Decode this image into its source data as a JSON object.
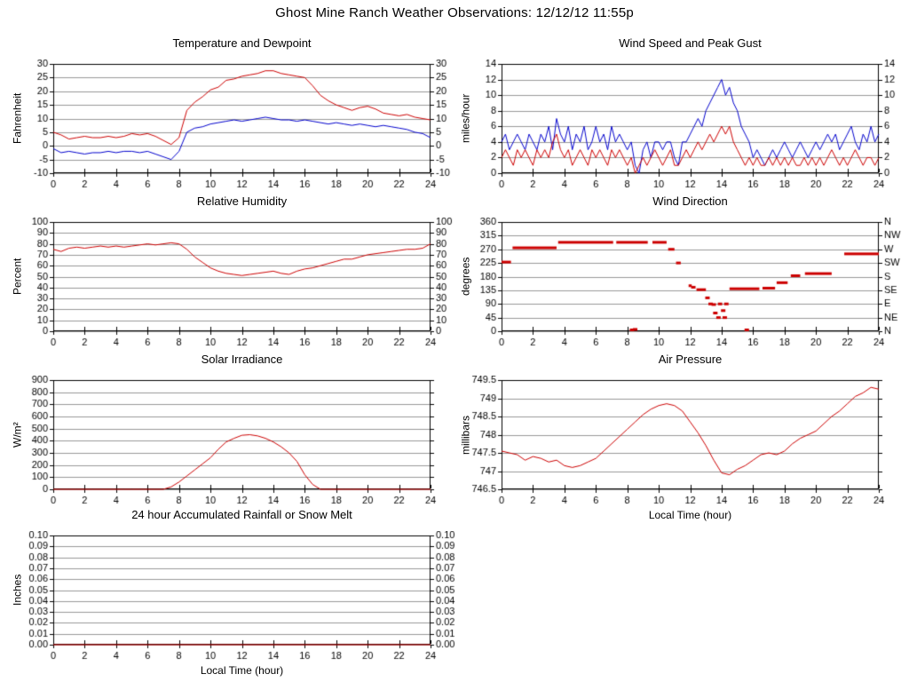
{
  "page_title": "Ghost Mine Ranch Weather Observations: 12/12/12 11:55p",
  "colors": {
    "red": "#cc0000",
    "blue": "#0000cc",
    "grid": "#999999",
    "axis": "#000000"
  },
  "x_axis": {
    "label": "Local Time (hour)",
    "xlim": [
      0,
      24
    ],
    "tick_vals": [
      0,
      2,
      4,
      6,
      8,
      10,
      12,
      14,
      16,
      18,
      20,
      22,
      24
    ],
    "tick_labels": [
      "0",
      "2",
      "4",
      "6",
      "8",
      "10",
      "12",
      "14",
      "16",
      "18",
      "20",
      "22",
      "24"
    ]
  },
  "chart_data": [
    {
      "id": "temperature_dewpoint",
      "type": "line",
      "title": "Temperature and Dewpoint",
      "ylabel": "Fahrenheit",
      "xlabel": "",
      "ylim": [
        -10,
        30
      ],
      "ytick_vals": [
        -10,
        -5,
        0,
        5,
        10,
        15,
        20,
        25,
        30
      ],
      "ytick_labels": [
        "-10",
        "-5",
        "0",
        "5",
        "10",
        "15",
        "20",
        "25",
        "30"
      ],
      "right_tick_labels": [
        "-10",
        "-5",
        "0",
        "5",
        "10",
        "15",
        "20",
        "25",
        "30"
      ],
      "series": [
        {
          "name": "temperature",
          "color": "#cc0000",
          "x0": 0,
          "dx": 0.5,
          "values": [
            5,
            4,
            2.5,
            3,
            3.5,
            3,
            3,
            3.5,
            3,
            3.5,
            4.5,
            4,
            4.5,
            3.5,
            2,
            0.5,
            3,
            13,
            16,
            18,
            20.5,
            21.5,
            24,
            24.5,
            25.5,
            26,
            26.5,
            27.5,
            27.5,
            26.5,
            26,
            25.5,
            25,
            22,
            18.5,
            16.5,
            15,
            14,
            13,
            14,
            14.5,
            13.5,
            12,
            11.5,
            11,
            11.5,
            10.5,
            10,
            9.5
          ]
        },
        {
          "name": "dewpoint",
          "color": "#0000cc",
          "x0": 0,
          "dx": 0.5,
          "values": [
            -1,
            -2.5,
            -2,
            -2.5,
            -3,
            -2.5,
            -2.5,
            -2,
            -2.5,
            -2,
            -2,
            -2.5,
            -2,
            -3,
            -4,
            -5,
            -2,
            5,
            6.5,
            7,
            8,
            8.5,
            9,
            9.5,
            9,
            9.5,
            10,
            10.5,
            10,
            9.5,
            9.5,
            9,
            9.5,
            9,
            8.5,
            8,
            8.5,
            8,
            7.5,
            8,
            7.5,
            7,
            7.5,
            7,
            6.5,
            6,
            5,
            4.5,
            3
          ]
        }
      ]
    },
    {
      "id": "wind_speed_gust",
      "type": "line",
      "title": "Wind Speed and Peak Gust",
      "ylabel": "miles/hour",
      "xlabel": "",
      "ylim": [
        0,
        14
      ],
      "ytick_vals": [
        0,
        2,
        4,
        6,
        8,
        10,
        12,
        14
      ],
      "ytick_labels": [
        "0",
        "2",
        "4",
        "6",
        "8",
        "10",
        "12",
        "14"
      ],
      "right_tick_labels": [
        "0",
        "2",
        "4",
        "6",
        "8",
        "10",
        "12",
        "14"
      ],
      "series": [
        {
          "name": "peak_gust",
          "color": "#0000cc",
          "x0": 0,
          "dx": 0.25,
          "values": [
            4,
            5,
            3,
            4,
            5,
            4,
            3,
            5,
            4,
            3,
            5,
            4,
            6,
            3,
            7,
            5,
            4,
            6,
            3,
            5,
            4,
            6,
            3,
            4,
            6,
            4,
            5,
            3,
            6,
            4,
            5,
            4,
            3,
            4,
            1,
            0,
            3,
            4,
            2,
            4,
            4,
            3,
            4,
            4,
            2,
            1,
            4,
            4,
            5,
            6,
            7,
            6,
            8,
            9,
            10,
            11,
            12,
            10,
            11,
            9,
            8,
            6,
            5,
            4,
            2,
            3,
            2,
            1,
            2,
            3,
            2,
            3,
            4,
            3,
            2,
            3,
            4,
            3,
            2,
            3,
            4,
            3,
            4,
            5,
            4,
            5,
            3,
            4,
            5,
            6,
            4,
            3,
            5,
            4,
            6,
            4,
            5
          ]
        },
        {
          "name": "wind_speed",
          "color": "#cc0000",
          "x0": 0,
          "dx": 0.25,
          "values": [
            2,
            3,
            2,
            1,
            3,
            2,
            3,
            2,
            1,
            3,
            2,
            3,
            2,
            4,
            5,
            3,
            2,
            3,
            1,
            2,
            3,
            2,
            1,
            3,
            2,
            3,
            2,
            1,
            3,
            2,
            3,
            2,
            1,
            2,
            0,
            1,
            2,
            1,
            2,
            3,
            2,
            1,
            2,
            3,
            1,
            1,
            2,
            3,
            2,
            3,
            4,
            3,
            4,
            5,
            4,
            5,
            6,
            5,
            6,
            4,
            3,
            2,
            1,
            2,
            1,
            2,
            1,
            1,
            2,
            1,
            2,
            1,
            2,
            1,
            2,
            1,
            1,
            2,
            1,
            2,
            1,
            2,
            1,
            2,
            3,
            2,
            1,
            2,
            1,
            2,
            3,
            2,
            1,
            2,
            2,
            1,
            2
          ]
        }
      ]
    },
    {
      "id": "relative_humidity",
      "type": "line",
      "title": "Relative Humidity",
      "ylabel": "Percent",
      "xlabel": "",
      "ylim": [
        0,
        100
      ],
      "ytick_vals": [
        0,
        10,
        20,
        30,
        40,
        50,
        60,
        70,
        80,
        90,
        100
      ],
      "ytick_labels": [
        "0",
        "10",
        "20",
        "30",
        "40",
        "50",
        "60",
        "70",
        "80",
        "90",
        "100"
      ],
      "right_tick_labels": [
        "0",
        "10",
        "20",
        "30",
        "40",
        "50",
        "60",
        "70",
        "80",
        "90",
        "100"
      ],
      "series": [
        {
          "name": "humidity",
          "color": "#cc0000",
          "x0": 0,
          "dx": 0.5,
          "values": [
            75,
            73,
            76,
            77,
            76,
            77,
            78,
            77,
            78,
            77,
            78,
            79,
            80,
            79,
            80,
            81,
            80,
            75,
            68,
            63,
            58,
            55,
            53,
            52,
            51,
            52,
            53,
            54,
            55,
            53,
            52,
            55,
            57,
            58,
            60,
            62,
            64,
            66,
            66,
            68,
            70,
            71,
            72,
            73,
            74,
            75,
            75,
            76,
            80
          ]
        }
      ]
    },
    {
      "id": "wind_direction",
      "type": "dash",
      "title": "Wind Direction",
      "ylabel": "degrees",
      "xlabel": "",
      "ylim": [
        0,
        360
      ],
      "ytick_vals": [
        0,
        45,
        90,
        135,
        180,
        225,
        270,
        315,
        360
      ],
      "ytick_labels": [
        "0",
        "45",
        "90",
        "135",
        "180",
        "225",
        "270",
        "315",
        "360"
      ],
      "right_tick_labels": [
        "N",
        "NE",
        "E",
        "SE",
        "S",
        "SW",
        "W",
        "NW",
        "N"
      ],
      "color": "#cc0000",
      "segments": [
        [
          0.0,
          0.6,
          228
        ],
        [
          0.7,
          3.5,
          275
        ],
        [
          3.6,
          7.1,
          293
        ],
        [
          7.3,
          9.3,
          293
        ],
        [
          9.6,
          10.5,
          293
        ],
        [
          10.6,
          11.0,
          270
        ],
        [
          11.1,
          11.4,
          225
        ],
        [
          11.9,
          12.1,
          150
        ],
        [
          12.4,
          13.0,
          137
        ],
        [
          14.5,
          16.4,
          140
        ],
        [
          16.6,
          17.4,
          142
        ],
        [
          17.5,
          18.2,
          160
        ],
        [
          18.4,
          19.0,
          183
        ],
        [
          19.3,
          21.0,
          190
        ],
        [
          21.8,
          24.0,
          255
        ]
      ],
      "dots": [
        [
          8.3,
          0
        ],
        [
          8.5,
          6
        ],
        [
          12.2,
          145
        ],
        [
          13.1,
          110
        ],
        [
          13.3,
          90
        ],
        [
          13.5,
          88
        ],
        [
          13.6,
          60
        ],
        [
          13.8,
          45
        ],
        [
          13.9,
          90
        ],
        [
          14.1,
          68
        ],
        [
          14.2,
          45
        ],
        [
          14.3,
          90
        ],
        [
          15.6,
          0
        ]
      ]
    },
    {
      "id": "solar_irradiance",
      "type": "line",
      "title": "Solar Irradiance",
      "ylabel": "W/m²",
      "xlabel": "",
      "ylim": [
        0,
        900
      ],
      "ytick_vals": [
        0,
        100,
        200,
        300,
        400,
        500,
        600,
        700,
        800,
        900
      ],
      "ytick_labels": [
        "0",
        "100",
        "200",
        "300",
        "400",
        "500",
        "600",
        "700",
        "800",
        "900"
      ],
      "right_tick_labels": null,
      "series": [
        {
          "name": "solar",
          "color": "#cc0000",
          "x0": 0,
          "dx": 0.5,
          "values": [
            0,
            0,
            0,
            0,
            0,
            0,
            0,
            0,
            0,
            0,
            0,
            0,
            0,
            0,
            0,
            20,
            60,
            110,
            160,
            210,
            260,
            330,
            390,
            420,
            445,
            450,
            440,
            420,
            390,
            350,
            300,
            230,
            120,
            40,
            0,
            0,
            0,
            0,
            0,
            0,
            0,
            0,
            0,
            0,
            0,
            0,
            0,
            0,
            0
          ]
        }
      ]
    },
    {
      "id": "air_pressure",
      "type": "line",
      "title": "Air Pressure",
      "ylabel": "millibars",
      "xlabel": "Local Time (hour)",
      "ylim": [
        746.5,
        749.5
      ],
      "ytick_vals": [
        746.5,
        747,
        747.5,
        748,
        748.5,
        749,
        749.5
      ],
      "ytick_labels": [
        "746.5",
        "747",
        "747.5",
        "748",
        "748.5",
        "749",
        "749.5"
      ],
      "right_tick_labels": null,
      "series": [
        {
          "name": "pressure",
          "color": "#cc0000",
          "x0": 0,
          "dx": 0.5,
          "values": [
            747.55,
            747.5,
            747.45,
            747.3,
            747.4,
            747.35,
            747.25,
            747.3,
            747.15,
            747.1,
            747.15,
            747.25,
            747.35,
            747.55,
            747.75,
            747.95,
            748.15,
            748.35,
            748.55,
            748.7,
            748.8,
            748.85,
            748.8,
            748.65,
            748.35,
            748.05,
            747.7,
            747.3,
            746.95,
            746.9,
            747.05,
            747.15,
            747.3,
            747.45,
            747.5,
            747.45,
            747.55,
            747.75,
            747.9,
            748.0,
            748.1,
            748.3,
            748.5,
            748.65,
            748.85,
            749.05,
            749.15,
            749.3,
            749.25
          ]
        }
      ]
    },
    {
      "id": "rainfall",
      "type": "line",
      "title": "24 hour Accumulated Rainfall or Snow Melt",
      "ylabel": "Inches",
      "xlabel": "Local Time (hour)",
      "ylim": [
        0,
        0.1
      ],
      "ytick_vals": [
        0,
        0.01,
        0.02,
        0.03,
        0.04,
        0.05,
        0.06,
        0.07,
        0.08,
        0.09,
        0.1
      ],
      "ytick_labels": [
        "0.00",
        "0.01",
        "0.02",
        "0.03",
        "0.04",
        "0.05",
        "0.06",
        "0.07",
        "0.08",
        "0.09",
        "0.10"
      ],
      "right_tick_labels": [
        "0.00",
        "0.01",
        "0.02",
        "0.03",
        "0.04",
        "0.05",
        "0.06",
        "0.07",
        "0.08",
        "0.09",
        "0.10"
      ],
      "series": [
        {
          "name": "rainfall",
          "color": "#cc0000",
          "x0": 0,
          "dx": 24,
          "values": [
            0,
            0
          ]
        }
      ]
    }
  ]
}
